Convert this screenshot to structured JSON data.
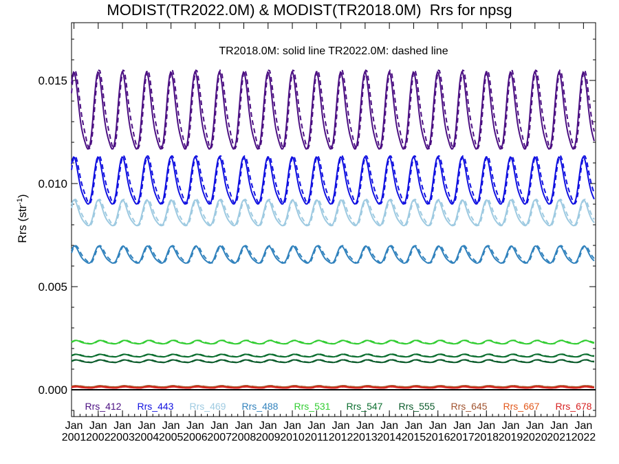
{
  "chart_data": {
    "type": "line",
    "title": "MODIST(TR2022.0M) & MODIST(TR2018.0M)  Rrs for npsg",
    "subtitle": "TR2018.0M: solid line   TR2022.0M: dashed line",
    "xlabel": "",
    "ylabel": "Rrs (str",
    "ylabel_sup": "-1",
    "ylabel_end": ")",
    "ylim": [
      -0.0013,
      0.0178
    ],
    "xlim": [
      2000.9,
      2022.5
    ],
    "yticks": [
      0.0,
      0.005,
      0.01,
      0.015
    ],
    "ytick_labels": [
      "0.000",
      "0.005",
      "0.010",
      "0.015"
    ],
    "xticks": [
      2001,
      2002,
      2003,
      2004,
      2005,
      2006,
      2007,
      2008,
      2009,
      2010,
      2011,
      2012,
      2013,
      2014,
      2015,
      2016,
      2017,
      2018,
      2019,
      2020,
      2021,
      2022
    ],
    "xtick_month": "Jan",
    "xtick_years": [
      "2001",
      "2002",
      "2003",
      "2004",
      "2005",
      "2006",
      "2007",
      "2008",
      "2009",
      "2010",
      "2011",
      "2012",
      "2013",
      "2014",
      "2015",
      "2016",
      "2017",
      "2018",
      "2019",
      "2020",
      "2021",
      "2022"
    ],
    "grid": false,
    "legend_position": "bottom",
    "time_range": [
      2000.9,
      2022.45
    ],
    "series": [
      {
        "name": "Rrs_412",
        "color": "#4b0f82",
        "mean": 0.0133,
        "amplitude": 0.0018,
        "phase": 0.02
      },
      {
        "name": "Rrs_443",
        "color": "#1010e0",
        "mean": 0.01,
        "amplitude": 0.0011,
        "phase": 0.02
      },
      {
        "name": "Rrs_469",
        "color": "#9ecae1",
        "mean": 0.0085,
        "amplitude": 0.0006,
        "phase": 0.03
      },
      {
        "name": "Rrs_488",
        "color": "#3182bd",
        "mean": 0.0065,
        "amplitude": 0.0004,
        "phase": 0.05
      },
      {
        "name": "Rrs_531",
        "color": "#32cd32",
        "mean": 0.0023,
        "amplitude": 8e-05,
        "phase": 0.1
      },
      {
        "name": "Rrs_547",
        "color": "#0b6e2f",
        "mean": 0.00165,
        "amplitude": 6e-05,
        "phase": 0.1
      },
      {
        "name": "Rrs_555",
        "color": "#0a5a2a",
        "mean": 0.00138,
        "amplitude": 6e-05,
        "phase": 0.1
      },
      {
        "name": "Rrs_645",
        "color": "#a0522d",
        "mean": 0.00016,
        "amplitude": 3e-05,
        "phase": 0.1
      },
      {
        "name": "Rrs_667",
        "color": "#e2581b",
        "mean": 0.00012,
        "amplitude": 3e-05,
        "phase": 0.1
      },
      {
        "name": "Rrs_678",
        "color": "#d62020",
        "mean": 0.00011,
        "amplitude": 3e-05,
        "phase": 0.1
      }
    ],
    "zero_line": 0.0
  }
}
